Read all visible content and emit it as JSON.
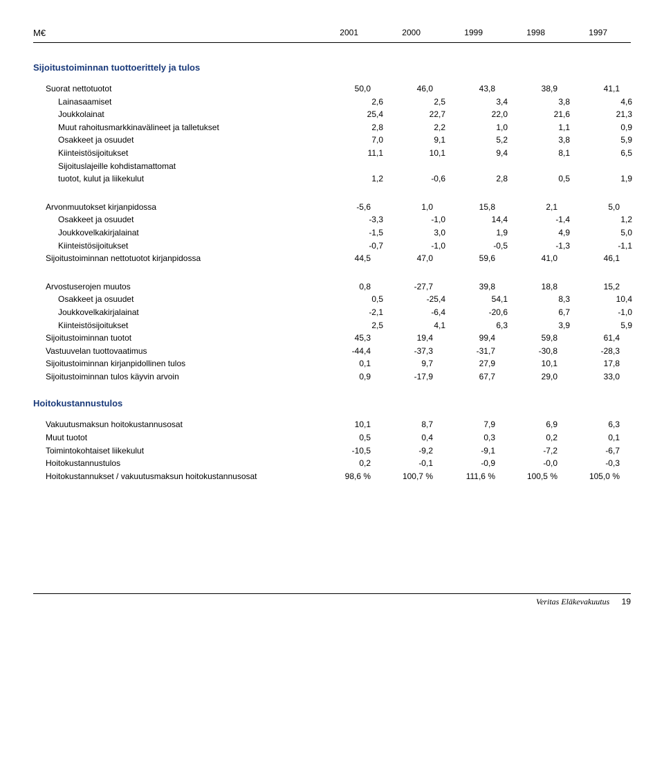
{
  "header": {
    "unit": "M€",
    "years": [
      "2001",
      "2000",
      "1999",
      "1998",
      "1997"
    ]
  },
  "section1": {
    "title": "Sijoitustoiminnan tuottoerittely ja tulos",
    "groups": [
      {
        "rows": [
          {
            "label": "Suorat nettotuotot",
            "indent": 1,
            "vals": [
              "50,0",
              "46,0",
              "43,8",
              "38,9",
              "41,1"
            ]
          },
          {
            "label": "Lainasaamiset",
            "indent": 2,
            "vals": [
              "2,6",
              "2,5",
              "3,4",
              "3,8",
              "4,6"
            ]
          },
          {
            "label": "Joukkolainat",
            "indent": 2,
            "vals": [
              "25,4",
              "22,7",
              "22,0",
              "21,6",
              "21,3"
            ]
          },
          {
            "label": "Muut rahoitusmarkkinavälineet ja talletukset",
            "indent": 2,
            "vals": [
              "2,8",
              "2,2",
              "1,0",
              "1,1",
              "0,9"
            ]
          },
          {
            "label": "Osakkeet ja osuudet",
            "indent": 2,
            "vals": [
              "7,0",
              "9,1",
              "5,2",
              "3,8",
              "5,9"
            ]
          },
          {
            "label": "Kiinteistösijoitukset",
            "indent": 2,
            "vals": [
              "11,1",
              "10,1",
              "9,4",
              "8,1",
              "6,5"
            ]
          },
          {
            "label": "Sijoituslajeille kohdistamattomat",
            "indent": 2,
            "vals": [
              "",
              "",
              "",
              "",
              ""
            ]
          },
          {
            "label": "tuotot, kulut ja liikekulut",
            "indent": 2,
            "vals": [
              "1,2",
              "-0,6",
              "2,8",
              "0,5",
              "1,9"
            ]
          }
        ]
      },
      {
        "rows": [
          {
            "label": "Arvonmuutokset kirjanpidossa",
            "indent": 1,
            "vals": [
              "-5,6",
              "1,0",
              "15,8",
              "2,1",
              "5,0"
            ]
          },
          {
            "label": "Osakkeet ja osuudet",
            "indent": 2,
            "vals": [
              "-3,3",
              "-1,0",
              "14,4",
              "-1,4",
              "1,2"
            ]
          },
          {
            "label": "Joukkovelkakirjalainat",
            "indent": 2,
            "vals": [
              "-1,5",
              "3,0",
              "1,9",
              "4,9",
              "5,0"
            ]
          },
          {
            "label": "Kiinteistösijoitukset",
            "indent": 2,
            "vals": [
              "-0,7",
              "-1,0",
              "-0,5",
              "-1,3",
              "-1,1"
            ]
          },
          {
            "label": "Sijoitustoiminnan nettotuotot kirjanpidossa",
            "indent": 1,
            "vals": [
              "44,5",
              "47,0",
              "59,6",
              "41,0",
              "46,1"
            ]
          }
        ]
      },
      {
        "rows": [
          {
            "label": "Arvostuserojen muutos",
            "indent": 1,
            "vals": [
              "0,8",
              "-27,7",
              "39,8",
              "18,8",
              "15,2"
            ]
          },
          {
            "label": "Osakkeet ja osuudet",
            "indent": 2,
            "vals": [
              "0,5",
              "-25,4",
              "54,1",
              "8,3",
              "10,4"
            ]
          },
          {
            "label": "Joukkovelkakirjalainat",
            "indent": 2,
            "vals": [
              "-2,1",
              "-6,4",
              "-20,6",
              "6,7",
              "-1,0"
            ]
          },
          {
            "label": "Kiinteistösijoitukset",
            "indent": 2,
            "vals": [
              "2,5",
              "4,1",
              "6,3",
              "3,9",
              "5,9"
            ]
          },
          {
            "label": "Sijoitustoiminnan tuotot",
            "indent": 1,
            "vals": [
              "45,3",
              "19,4",
              "99,4",
              "59,8",
              "61,4"
            ]
          },
          {
            "label": "Vastuuvelan tuottovaatimus",
            "indent": 1,
            "vals": [
              "-44,4",
              "-37,3",
              "-31,7",
              "-30,8",
              "-28,3"
            ]
          },
          {
            "label": "Sijoitustoiminnan kirjanpidollinen tulos",
            "indent": 1,
            "vals": [
              "0,1",
              "9,7",
              "27,9",
              "10,1",
              "17,8"
            ]
          },
          {
            "label": "Sijoitustoiminnan tulos käyvin arvoin",
            "indent": 1,
            "vals": [
              "0,9",
              "-17,9",
              "67,7",
              "29,0",
              "33,0"
            ]
          }
        ]
      }
    ]
  },
  "section2": {
    "title": "Hoitokustannustulos",
    "groups": [
      {
        "rows": [
          {
            "label": "Vakuutusmaksun hoitokustannusosat",
            "indent": 1,
            "vals": [
              "10,1",
              "8,7",
              "7,9",
              "6,9",
              "6,3"
            ]
          },
          {
            "label": "Muut tuotot",
            "indent": 1,
            "vals": [
              "0,5",
              "0,4",
              "0,3",
              "0,2",
              "0,1"
            ]
          },
          {
            "label": "Toimintokohtaiset liikekulut",
            "indent": 1,
            "vals": [
              "-10,5",
              "-9,2",
              "-9,1",
              "-7,2",
              "-6,7"
            ]
          },
          {
            "label": "Hoitokustannustulos",
            "indent": 1,
            "vals": [
              "0,2",
              "-0,1",
              "-0,9",
              "-0,0",
              "-0,3"
            ]
          },
          {
            "label": "Hoitokustannukset / vakuutusmaksun hoitokustannusosat",
            "indent": 1,
            "vals": [
              "98,6 %",
              "100,7 %",
              "111,6 %",
              "100,5 %",
              "105,0 %"
            ]
          }
        ]
      }
    ]
  },
  "footer": {
    "brand": "Veritas Eläkevakuutus",
    "page": "19"
  }
}
